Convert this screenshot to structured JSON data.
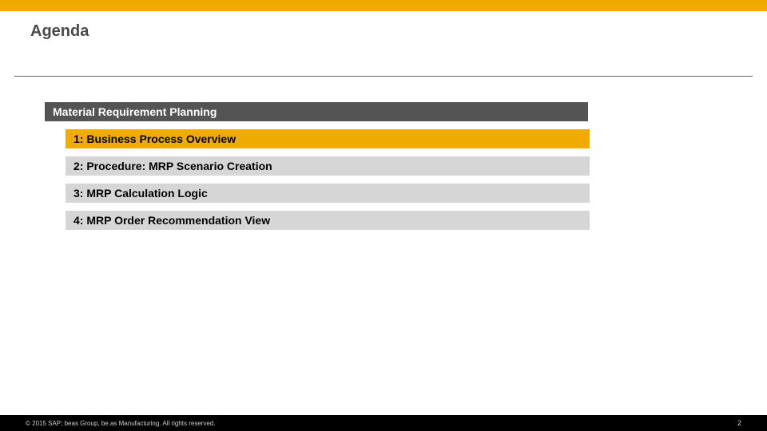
{
  "colors": {
    "accent": "#f0ab00",
    "section_bg": "#545454",
    "item_bg": "#d6d6d6",
    "divider": "#666666",
    "footer_bg": "#000000",
    "title_text": "#4a4a4a"
  },
  "title": "Agenda",
  "section_header": "Material Requirement Planning",
  "items": [
    {
      "label": "1: Business Process Overview",
      "highlighted": true
    },
    {
      "label": "2: Procedure: MRP Scenario Creation",
      "highlighted": false
    },
    {
      "label": "3: MRP Calculation Logic",
      "highlighted": false
    },
    {
      "label": "4: MRP Order Recommendation View",
      "highlighted": false
    }
  ],
  "footer": {
    "copyright": "© 2015 SAP; beas Group, be.as Manufacturing.  All rights reserved.",
    "page": "2"
  }
}
